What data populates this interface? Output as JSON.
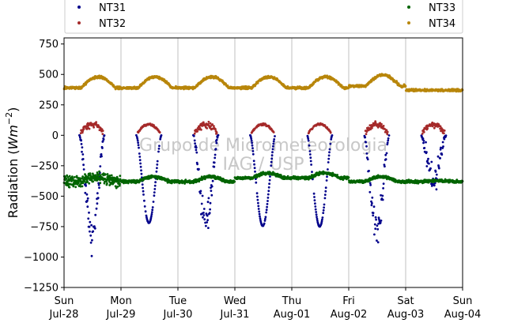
{
  "chart_data": {
    "type": "scatter",
    "ylabel_main": "Radiation (",
    "ylabel_unit_base": "Wm",
    "ylabel_unit_exp": "−2",
    "ylabel_close": ")",
    "ylim": [
      -1250,
      800
    ],
    "yticks": [
      750,
      500,
      250,
      0,
      -250,
      -500,
      -750,
      -1000,
      -1250
    ],
    "ytick_labels": [
      "750",
      "500",
      "250",
      "0",
      "−250",
      "−500",
      "−750",
      "−1000",
      "−1250"
    ],
    "xlim_days": [
      0,
      7
    ],
    "xticks": [
      {
        "day": "Sun",
        "date": "Jul-28"
      },
      {
        "day": "Mon",
        "date": "Jul-29"
      },
      {
        "day": "Tue",
        "date": "Jul-30"
      },
      {
        "day": "Wed",
        "date": "Jul-31"
      },
      {
        "day": "Thu",
        "date": "Aug-01"
      },
      {
        "day": "Fri",
        "date": "Aug-02"
      },
      {
        "day": "Sat",
        "date": "Aug-03"
      },
      {
        "day": "Sun",
        "date": "Aug-04"
      }
    ],
    "grid_x": true,
    "grid_y": false,
    "legend_position": "top",
    "watermark": [
      "Grupo de Micrometeorologia",
      "IAG / USP"
    ],
    "series": [
      {
        "name": "NT31",
        "color": "#00008b"
      },
      {
        "name": "NT32",
        "color": "#a52a2a"
      },
      {
        "name": "NT33",
        "color": "#006400"
      },
      {
        "name": "NT34",
        "color": "#b8860b"
      }
    ]
  }
}
